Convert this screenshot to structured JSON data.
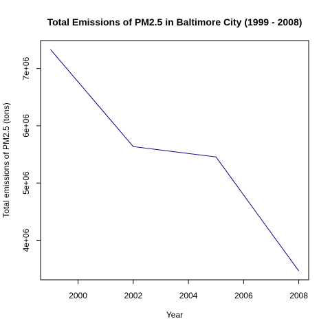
{
  "chart_data": {
    "type": "line",
    "title": "Total Emissions of PM2.5 in Baltimore City (1999 - 2008)",
    "xlabel": "Year",
    "ylabel": "Total emissions of PM2.5 (tons)",
    "x": [
      1999,
      2002,
      2005,
      2008
    ],
    "series": [
      {
        "values": [
          7332967,
          5635780,
          5454703,
          3464206
        ]
      }
    ],
    "xlim": [
      1998.64,
      2008.36
    ],
    "ylim": [
      3309096,
      7488077
    ],
    "xticks": [
      2000,
      2002,
      2004,
      2006,
      2008
    ],
    "xtick_labels": [
      "2000",
      "2002",
      "2004",
      "2006",
      "2008"
    ],
    "yticks": [
      4000000,
      5000000,
      6000000,
      7000000
    ],
    "ytick_labels": [
      "4e+06",
      "5e+06",
      "6e+06",
      "7e+06"
    ],
    "grid": false,
    "line_color": "#00008b"
  }
}
